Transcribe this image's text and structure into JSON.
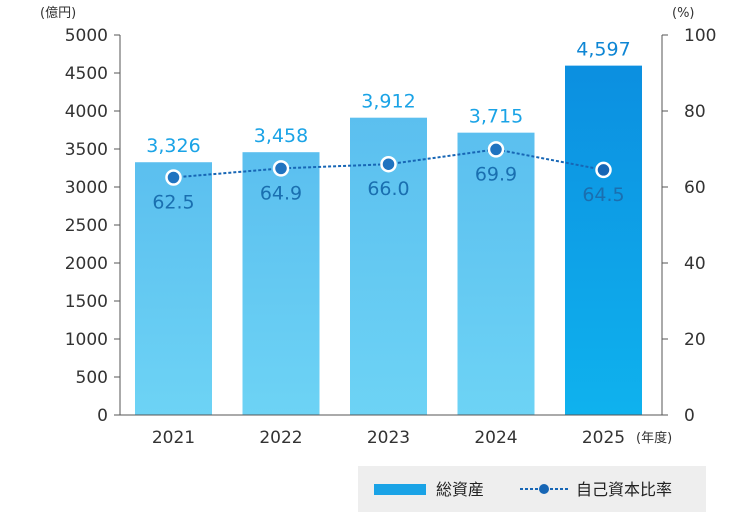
{
  "chart_data": {
    "type": "bar",
    "categories": [
      "2021",
      "2022",
      "2023",
      "2024",
      "2025"
    ],
    "x_unit": "(年度)",
    "left_axis": {
      "unit": "(億円)",
      "min": 0,
      "max": 5000,
      "step": 500,
      "ticks": [
        "0",
        "500",
        "1000",
        "1500",
        "2000",
        "2500",
        "3000",
        "3500",
        "4000",
        "4500",
        "5000"
      ]
    },
    "right_axis": {
      "unit": "(%)",
      "min": 0,
      "max": 100,
      "step": 20,
      "ticks": [
        "0",
        "20",
        "40",
        "60",
        "80",
        "100"
      ]
    },
    "series": [
      {
        "name": "総資産",
        "type": "bar",
        "axis": "left",
        "values": [
          3326,
          3458,
          3912,
          3715,
          4597
        ],
        "labels": [
          "3,326",
          "3,458",
          "3,912",
          "3,715",
          "4,597"
        ]
      },
      {
        "name": "自己資本比率",
        "type": "line",
        "axis": "right",
        "style": "dashed",
        "values": [
          62.5,
          64.9,
          66.0,
          69.9,
          64.5
        ],
        "labels": [
          "62.5",
          "64.9",
          "66.0",
          "69.9",
          "64.5"
        ]
      }
    ],
    "colors": {
      "bar_top": "#5bbfef",
      "bar_bottom": "#6dd3f5",
      "bar_highlight_top": "#0c8fe0",
      "bar_highlight_bottom": "#0fb2ee",
      "line": "#1766b5",
      "marker_fill": "#1f73c0"
    },
    "legend_position": "bottom-right",
    "grid": false
  }
}
